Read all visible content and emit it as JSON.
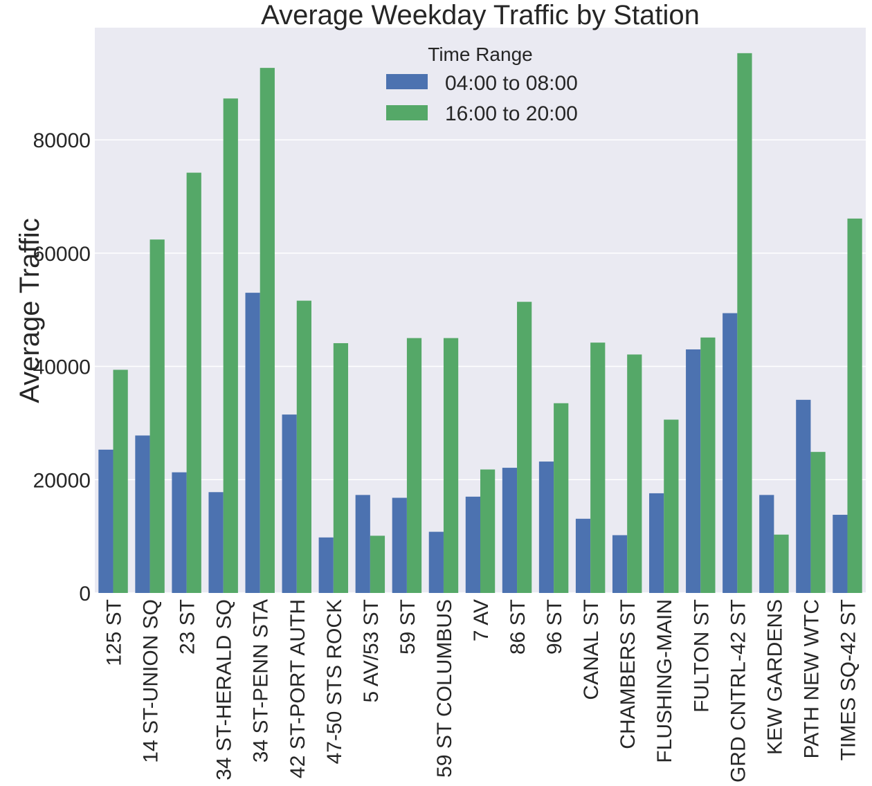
{
  "chart_data": {
    "type": "bar",
    "title": "Average Weekday Traffic by Station",
    "xlabel": "",
    "ylabel": "Average Traffic",
    "ylim": [
      0,
      99800
    ],
    "yticks": [
      0,
      20000,
      40000,
      60000,
      80000
    ],
    "grid": true,
    "legend_position": "top-center",
    "legend_title": "Time Range",
    "categories": [
      "125 ST",
      "14 ST-UNION SQ",
      "23 ST",
      "34 ST-HERALD SQ",
      "34 ST-PENN STA",
      "42 ST-PORT AUTH",
      "47-50 STS ROCK",
      "5 AV/53 ST",
      "59 ST",
      "59 ST COLUMBUS",
      "7 AV",
      "86 ST",
      "96 ST",
      "CANAL ST",
      "CHAMBERS ST",
      "FLUSHING-MAIN",
      "FULTON ST",
      "GRD CNTRL-42 ST",
      "KEW GARDENS",
      "PATH NEW WTC",
      "TIMES SQ-42 ST"
    ],
    "series": [
      {
        "name": "04:00 to 08:00",
        "color": "#4c72b0",
        "values": [
          25300,
          27800,
          21300,
          17800,
          53000,
          31500,
          9800,
          17300,
          16800,
          10800,
          17000,
          22100,
          23200,
          13100,
          10200,
          17600,
          43000,
          49400,
          17300,
          34100,
          13800
        ]
      },
      {
        "name": "16:00 to 20:00",
        "color": "#55a868",
        "values": [
          39400,
          62400,
          74200,
          87300,
          92700,
          51600,
          44100,
          10100,
          45000,
          45000,
          21800,
          51400,
          33500,
          44200,
          42100,
          30600,
          45100,
          95300,
          10300,
          24900,
          66100
        ]
      }
    ]
  }
}
